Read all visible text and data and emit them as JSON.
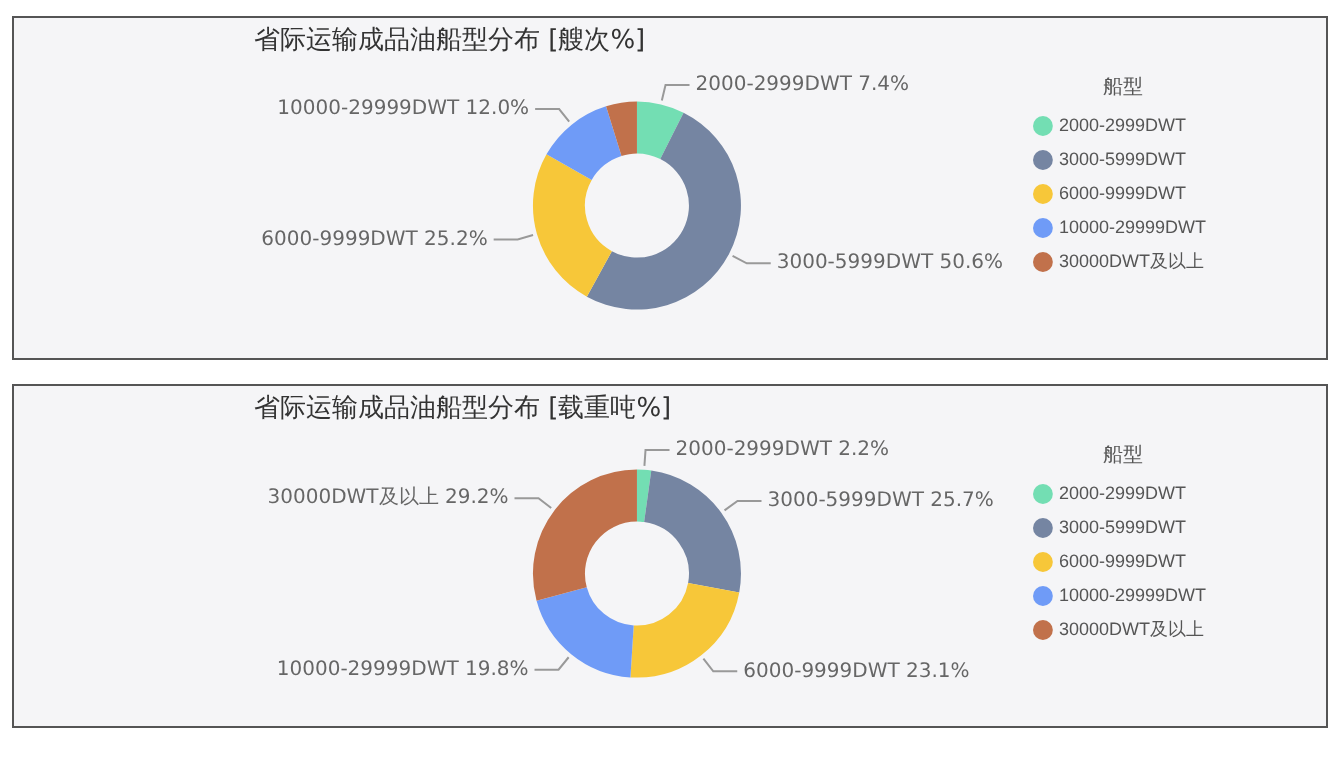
{
  "chart_data": [
    {
      "type": "donut",
      "title": "省际运输成品油船型分布 [艘次%]",
      "legend_title": "船型",
      "legend": "right",
      "categories": [
        "2000-2999DWT",
        "3000-5999DWT",
        "6000-9999DWT",
        "10000-29999DWT",
        "30000DWT及以上"
      ],
      "values": [
        7.4,
        50.6,
        25.2,
        12.0,
        4.8
      ],
      "colors": [
        "#73deb3",
        "#7585a2",
        "#f7c739",
        "#6f9bf7",
        "#c1714b"
      ],
      "value_labels": [
        "2000-2999DWT 7.4%",
        "3000-5999DWT 50.6%",
        "6000-9999DWT 25.2%",
        "10000-29999DWT 12.0%",
        null
      ]
    },
    {
      "type": "donut",
      "title": "省际运输成品油船型分布 [载重吨%]",
      "legend_title": "船型",
      "legend": "right",
      "categories": [
        "2000-2999DWT",
        "3000-5999DWT",
        "6000-9999DWT",
        "10000-29999DWT",
        "30000DWT及以上"
      ],
      "values": [
        2.2,
        25.7,
        23.1,
        19.8,
        29.2
      ],
      "colors": [
        "#73deb3",
        "#7585a2",
        "#f7c739",
        "#6f9bf7",
        "#c1714b"
      ],
      "value_labels": [
        "2000-2999DWT 2.2%",
        "3000-5999DWT 25.7%",
        "6000-9999DWT 23.1%",
        "10000-29999DWT 19.8%",
        "30000DWT及以上 29.2%"
      ]
    }
  ]
}
